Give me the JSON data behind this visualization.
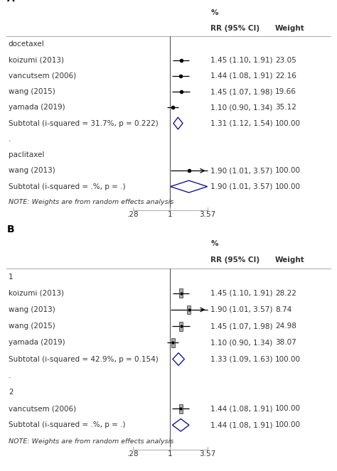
{
  "panel_A": {
    "label": "A",
    "groups": [
      {
        "name": "docetaxel",
        "studies": [
          {
            "label": "koizumi (2013)",
            "rr": 1.45,
            "ci_lo": 1.1,
            "ci_hi": 1.91,
            "weight": "23.05",
            "ci_text": "1.45 (1.10, 1.91)",
            "arrow": false,
            "square": false
          },
          {
            "label": "vancutsem (2006)",
            "rr": 1.44,
            "ci_lo": 1.08,
            "ci_hi": 1.91,
            "weight": "22.16",
            "ci_text": "1.44 (1.08, 1.91)",
            "arrow": false,
            "square": false
          },
          {
            "label": "wang (2015)",
            "rr": 1.45,
            "ci_lo": 1.07,
            "ci_hi": 1.98,
            "weight": "19.66",
            "ci_text": "1.45 (1.07, 1.98)",
            "arrow": false,
            "square": false
          },
          {
            "label": "yamada (2019)",
            "rr": 1.1,
            "ci_lo": 0.9,
            "ci_hi": 1.34,
            "weight": "35.12",
            "ci_text": "1.10 (0.90, 1.34)",
            "arrow": false,
            "square": false
          }
        ],
        "subtotal": {
          "label": "Subtotal (i-squared = 31.7%, p = 0.222)",
          "rr": 1.31,
          "ci_lo": 1.12,
          "ci_hi": 1.54,
          "weight": "100.00",
          "ci_text": "1.31 (1.12, 1.54)"
        }
      },
      {
        "name": "paclitaxel",
        "studies": [
          {
            "label": "wang (2013)",
            "rr": 1.9,
            "ci_lo": 1.01,
            "ci_hi": 3.57,
            "weight": "100.00",
            "ci_text": "1.90 (1.01, 3.57)",
            "arrow": true,
            "square": false
          }
        ],
        "subtotal": {
          "label": "Subtotal (i-squared = .%, p = .)",
          "rr": 1.9,
          "ci_lo": 1.01,
          "ci_hi": 3.57,
          "weight": "100.00",
          "ci_text": "1.90 (1.01, 3.57)"
        }
      }
    ],
    "note": "NOTE: Weights are from random effects analysis",
    "xlim_lo": 0.28,
    "xlim_hi": 3.57,
    "xticks": [
      0.28,
      1.0,
      3.57
    ],
    "xticklabels": [
      ".28",
      "1",
      "3.57"
    ]
  },
  "panel_B": {
    "label": "B",
    "groups": [
      {
        "name": "1",
        "studies": [
          {
            "label": "koizumi (2013)",
            "rr": 1.45,
            "ci_lo": 1.1,
            "ci_hi": 1.91,
            "weight": "28.22",
            "ci_text": "1.45 (1.10, 1.91)",
            "arrow": false,
            "square": true
          },
          {
            "label": "wang (2013)",
            "rr": 1.9,
            "ci_lo": 1.01,
            "ci_hi": 3.57,
            "weight": "8.74",
            "ci_text": "1.90 (1.01, 3.57)",
            "arrow": true,
            "square": true
          },
          {
            "label": "wang (2015)",
            "rr": 1.45,
            "ci_lo": 1.07,
            "ci_hi": 1.98,
            "weight": "24.98",
            "ci_text": "1.45 (1.07, 1.98)",
            "arrow": false,
            "square": true
          },
          {
            "label": "yamada (2019)",
            "rr": 1.1,
            "ci_lo": 0.9,
            "ci_hi": 1.34,
            "weight": "38.07",
            "ci_text": "1.10 (0.90, 1.34)",
            "arrow": false,
            "square": true
          }
        ],
        "subtotal": {
          "label": "Subtotal (i-squared = 42.9%, p = 0.154)",
          "rr": 1.33,
          "ci_lo": 1.09,
          "ci_hi": 1.63,
          "weight": "100.00",
          "ci_text": "1.33 (1.09, 1.63)"
        }
      },
      {
        "name": "2",
        "studies": [
          {
            "label": "vancutsem (2006)",
            "rr": 1.44,
            "ci_lo": 1.08,
            "ci_hi": 1.91,
            "weight": "100.00",
            "ci_text": "1.44 (1.08, 1.91)",
            "arrow": false,
            "square": true
          }
        ],
        "subtotal": {
          "label": "Subtotal (i-squared = .%, p = .)",
          "rr": 1.44,
          "ci_lo": 1.08,
          "ci_hi": 1.91,
          "weight": "100.00",
          "ci_text": "1.44 (1.08, 1.91)"
        }
      }
    ],
    "note": "NOTE: Weights are from random effects analysis",
    "xlim_lo": 0.28,
    "xlim_hi": 3.57,
    "xticks": [
      0.28,
      1.0,
      3.57
    ],
    "xticklabels": [
      ".28",
      "1",
      "3.57"
    ]
  },
  "diamond_color": "#00008B",
  "ci_line_color": "#000000",
  "marker_color": "#000000",
  "square_color": "#aaaaaa",
  "text_color": "#333333",
  "vline_color": "#555555",
  "header_rr": "RR (95% CI)",
  "header_weight": "Weight",
  "header_pct": "%",
  "fs": 7.5,
  "fs_note": 6.8,
  "fs_label": 10
}
